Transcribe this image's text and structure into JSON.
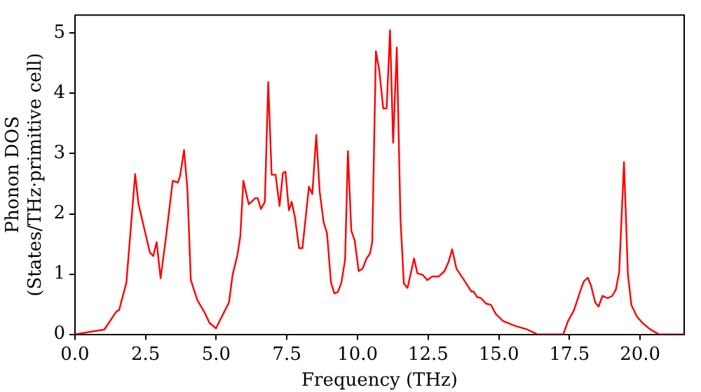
{
  "chart_data": {
    "type": "line",
    "xlabel": "Frequency (THz)",
    "ylabel": "Phonon DOS\n(States/THz·primitive cell)",
    "xlim": [
      0,
      21.56
    ],
    "ylim": [
      0,
      5.3
    ],
    "xticks": [
      {
        "value": 0,
        "label": "0.0"
      },
      {
        "value": 2.5,
        "label": "2.5"
      },
      {
        "value": 5,
        "label": "5.0"
      },
      {
        "value": 7.5,
        "label": "7.5"
      },
      {
        "value": 10,
        "label": "10.0"
      },
      {
        "value": 12.5,
        "label": "12.5"
      },
      {
        "value": 15,
        "label": "15.0"
      },
      {
        "value": 17.5,
        "label": "17.5"
      },
      {
        "value": 20,
        "label": "20.0"
      }
    ],
    "yticks": [
      0,
      1,
      2,
      3,
      4,
      5
    ],
    "grid": false,
    "legend": false,
    "marker": "none",
    "line_style": "solid",
    "series": [
      {
        "color": "#ff0000",
        "x": [
          0,
          1.04,
          1.47,
          1.56,
          1.82,
          2.13,
          2.25,
          2.65,
          2.77,
          2.89,
          3.03,
          3.2,
          3.46,
          3.64,
          3.72,
          3.86,
          3.98,
          4.1,
          4.33,
          4.59,
          4.76,
          4.99,
          5.45,
          5.58,
          5.75,
          5.85,
          5.96,
          6.15,
          6.38,
          6.47,
          6.58,
          6.72,
          6.84,
          6.96,
          7.1,
          7.24,
          7.36,
          7.45,
          7.57,
          7.67,
          7.79,
          7.93,
          8.05,
          8.28,
          8.4,
          8.54,
          8.66,
          8.8,
          8.92,
          9.06,
          9.18,
          9.3,
          9.43,
          9.56,
          9.66,
          9.78,
          9.9,
          10.04,
          10.18,
          10.32,
          10.44,
          10.52,
          10.65,
          10.77,
          10.91,
          11.03,
          11.15,
          11.26,
          11.39,
          11.52,
          11.64,
          11.77,
          12.0,
          12.12,
          12.3,
          12.47,
          12.64,
          12.87,
          13.08,
          13.22,
          13.35,
          13.5,
          13.77,
          14.03,
          14.11,
          14.23,
          14.37,
          14.55,
          14.72,
          14.89,
          15.15,
          15.58,
          16.01,
          16.36,
          17.28,
          17.45,
          17.66,
          17.87,
          18.01,
          18.15,
          18.27,
          18.41,
          18.53,
          18.67,
          18.85,
          19.02,
          19.14,
          19.26,
          19.43,
          19.57,
          19.69,
          19.88,
          20.08,
          20.34,
          20.66,
          21.56
        ],
        "values": [
          0,
          0.08,
          0.38,
          0.4,
          0.86,
          2.66,
          2.16,
          1.36,
          1.3,
          1.53,
          0.93,
          1.53,
          2.55,
          2.52,
          2.63,
          3.06,
          2.41,
          0.9,
          0.57,
          0.36,
          0.19,
          0.1,
          0.53,
          0.99,
          1.32,
          1.62,
          2.55,
          2.16,
          2.26,
          2.26,
          2.08,
          2.2,
          4.19,
          2.65,
          2.65,
          2.13,
          2.68,
          2.7,
          2.06,
          2.2,
          1.93,
          1.43,
          1.43,
          2.45,
          2.33,
          3.31,
          2.37,
          1.86,
          1.68,
          0.86,
          0.68,
          0.7,
          0.86,
          1.24,
          3.04,
          1.72,
          1.56,
          1.05,
          1.09,
          1.26,
          1.34,
          1.53,
          4.7,
          4.38,
          3.75,
          3.75,
          5.05,
          3.18,
          4.76,
          1.91,
          0.84,
          0.77,
          1.26,
          1.01,
          0.99,
          0.9,
          0.96,
          0.96,
          1.05,
          1.2,
          1.41,
          1.09,
          0.9,
          0.71,
          0.71,
          0.62,
          0.6,
          0.51,
          0.49,
          0.34,
          0.22,
          0.14,
          0.08,
          0,
          0,
          0.22,
          0.4,
          0.7,
          0.88,
          0.94,
          0.8,
          0.53,
          0.46,
          0.64,
          0.6,
          0.64,
          0.74,
          1.03,
          2.86,
          0.99,
          0.49,
          0.3,
          0.19,
          0.09,
          0,
          0
        ]
      }
    ]
  }
}
